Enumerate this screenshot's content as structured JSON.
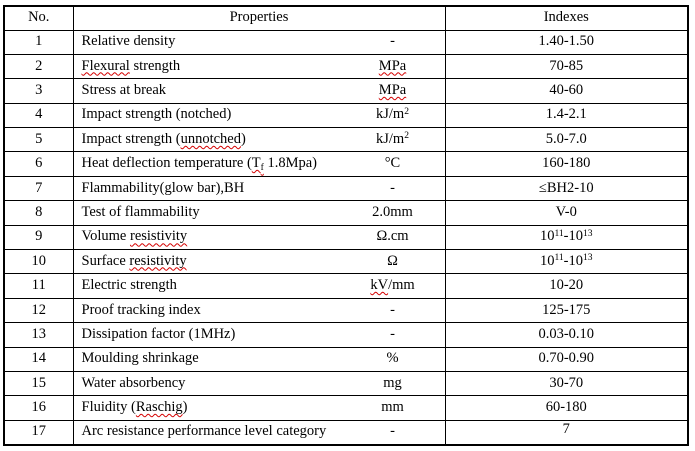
{
  "page": {
    "background": "#ffffff",
    "border_color": "#000000",
    "squiggle_color": "#d40000"
  },
  "table": {
    "headers": {
      "no": "No.",
      "properties": "Properties",
      "indexes": "Indexes"
    },
    "rows": [
      {
        "no": "1",
        "property": [
          {
            "t": "Relative density"
          }
        ],
        "unit": [
          {
            "t": "-"
          }
        ],
        "index": [
          {
            "t": "1.40-1.50"
          }
        ]
      },
      {
        "no": "2",
        "property": [
          {
            "t": "Flexural",
            "sq": true
          },
          {
            "t": " strength"
          }
        ],
        "unit": [
          {
            "t": "MPa",
            "sq": true
          }
        ],
        "index": [
          {
            "t": "70-85"
          }
        ]
      },
      {
        "no": "3",
        "property": [
          {
            "t": "Stress at break"
          }
        ],
        "unit": [
          {
            "t": "MPa",
            "sq": true
          }
        ],
        "index": [
          {
            "t": "40-60"
          }
        ]
      },
      {
        "no": "4",
        "property": [
          {
            "t": "Impact strength (notched)"
          }
        ],
        "unit": [
          {
            "t": "kJ/m"
          },
          {
            "t": "2",
            "sup": true
          }
        ],
        "index": [
          {
            "t": "1.4-2.1"
          }
        ]
      },
      {
        "no": "5",
        "property": [
          {
            "t": "Impact strength ("
          },
          {
            "t": "unnotched",
            "sq": true
          },
          {
            "t": ")"
          }
        ],
        "unit": [
          {
            "t": "kJ/m"
          },
          {
            "t": "2",
            "sup": true
          }
        ],
        "index": [
          {
            "t": "5.0-7.0"
          }
        ]
      },
      {
        "no": "6",
        "property": [
          {
            "t": "Heat deflection temperature ("
          },
          {
            "t": "T",
            "sq": true
          },
          {
            "t": "f",
            "sub": true,
            "sq": true
          },
          {
            "t": " 1.8Mpa)"
          }
        ],
        "unit": [
          {
            "t": "°C"
          }
        ],
        "index": [
          {
            "t": "160-180"
          }
        ]
      },
      {
        "no": "7",
        "property": [
          {
            "t": "Flammability(glow bar),BH"
          }
        ],
        "unit": [
          {
            "t": "-"
          }
        ],
        "index": [
          {
            "t": "≤BH2-10"
          }
        ]
      },
      {
        "no": "8",
        "property": [
          {
            "t": "Test of flammability"
          }
        ],
        "unit": [
          {
            "t": "2.0mm"
          }
        ],
        "index": [
          {
            "t": "V-0"
          }
        ]
      },
      {
        "no": "9",
        "property": [
          {
            "t": "Volume "
          },
          {
            "t": "resistivity",
            "sq": true
          }
        ],
        "unit": [
          {
            "t": "Ω.cm"
          }
        ],
        "index": [
          {
            "t": "10"
          },
          {
            "t": "11",
            "sup": true
          },
          {
            "t": "-10"
          },
          {
            "t": "13",
            "sup": true
          }
        ]
      },
      {
        "no": "10",
        "property": [
          {
            "t": "Surface "
          },
          {
            "t": "resistivity",
            "sq": true
          }
        ],
        "unit": [
          {
            "t": "Ω"
          }
        ],
        "index": [
          {
            "t": "10"
          },
          {
            "t": "11",
            "sup": true
          },
          {
            "t": "-10"
          },
          {
            "t": "13",
            "sup": true
          }
        ]
      },
      {
        "no": "11",
        "property": [
          {
            "t": "Electric strength"
          }
        ],
        "unit": [
          {
            "t": "kV",
            "sq": true
          },
          {
            "t": "/mm"
          }
        ],
        "index": [
          {
            "t": "10-20"
          }
        ]
      },
      {
        "no": "12",
        "property": [
          {
            "t": "Proof tracking index"
          }
        ],
        "unit": [
          {
            "t": "-"
          }
        ],
        "index": [
          {
            "t": "125-175"
          }
        ]
      },
      {
        "no": "13",
        "property": [
          {
            "t": "Dissipation factor (1MHz)"
          }
        ],
        "unit": [
          {
            "t": "-"
          }
        ],
        "index": [
          {
            "t": "0.03-0.10"
          }
        ]
      },
      {
        "no": "14",
        "property": [
          {
            "t": "Moulding shrinkage"
          }
        ],
        "unit": [
          {
            "t": "%"
          }
        ],
        "index": [
          {
            "t": "0.70-0.90"
          }
        ]
      },
      {
        "no": "15",
        "property": [
          {
            "t": "Water absorbency"
          }
        ],
        "unit": [
          {
            "t": "mg"
          }
        ],
        "index": [
          {
            "t": "30-70"
          }
        ]
      },
      {
        "no": "16",
        "property": [
          {
            "t": "Fluidity ("
          },
          {
            "t": "Raschig",
            "sq": true
          },
          {
            "t": ")"
          }
        ],
        "unit": [
          {
            "t": "mm"
          }
        ],
        "index": [
          {
            "t": "60-180"
          }
        ]
      },
      {
        "no": "17",
        "property": [
          {
            "t": "Arc resistance performance level category"
          }
        ],
        "unit": [
          {
            "t": "-"
          }
        ],
        "index": [
          {
            "t": "7"
          }
        ]
      }
    ]
  }
}
